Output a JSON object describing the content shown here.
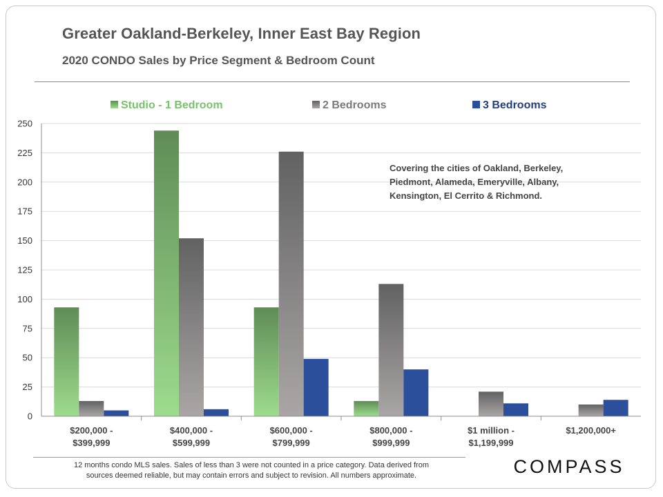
{
  "header": {
    "title": "Greater Oakland-Berkeley, Inner East Bay Region",
    "subtitle": "2020 CONDO Sales by Price Segment & Bedroom Count"
  },
  "note": {
    "line1": "Covering the cities of Oakland, Berkeley,",
    "line2": "Piedmont, Alameda, Emeryville, Albany,",
    "line3": "Kensington, El Cerrito & Richmond."
  },
  "footer": {
    "line1": "12 months condo MLS sales.  Sales of less than 3 were not counted in a price category. Data derived from",
    "line2": "sources deemed reliable, but may contain errors and subject to revision. All numbers approximate."
  },
  "logo": {
    "text": "COMPASS"
  },
  "chart_data": {
    "type": "bar",
    "categories": [
      [
        "$200,000 -",
        "$399,999"
      ],
      [
        "$400,000 -",
        "$599,999"
      ],
      [
        "$600,000 -",
        "$799,999"
      ],
      [
        "$800,000 -",
        "$999,999"
      ],
      [
        "$1 million -",
        "$1,199,999"
      ],
      [
        "$1,200,000+"
      ]
    ],
    "series": [
      {
        "name": "Studio - 1 Bedroom",
        "values": [
          93,
          244,
          93,
          13,
          0,
          0
        ],
        "color_top": "#5f8c56",
        "color_bottom": "#9ddc8d",
        "legend_color": "#76c36a"
      },
      {
        "name": "2 Bedrooms",
        "values": [
          13,
          152,
          226,
          113,
          21,
          10
        ],
        "color_top": "#626262",
        "color_bottom": "#aaa6a6",
        "legend_color": "#7a7a7a"
      },
      {
        "name": "3 Bedrooms",
        "values": [
          5,
          6,
          49,
          40,
          11,
          14
        ],
        "color_top": "#2b4f9a",
        "color_bottom": "#2b4f9a",
        "legend_color": "#2b4f9a"
      }
    ],
    "yticks": [
      0,
      25,
      50,
      75,
      100,
      125,
      150,
      175,
      200,
      225,
      250
    ],
    "ylim": [
      0,
      250
    ],
    "grid": true,
    "legend_position": "top"
  }
}
